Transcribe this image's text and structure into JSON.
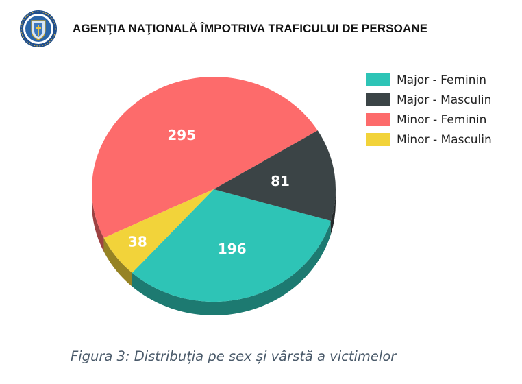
{
  "header": {
    "logo_icon": "mai-coat-of-arms-emblem",
    "organization": "AGENŢIA NAŢIONALĂ ÎMPOTRIVA TRAFICULUI DE PERSOANE"
  },
  "chart_data": {
    "type": "pie",
    "title": "",
    "categories": [
      "Major - Feminin",
      "Major - Masculin",
      "Minor - Feminin",
      "Minor - Masculin"
    ],
    "values": [
      196,
      81,
      295,
      38
    ],
    "colors": [
      "#2ec4b6",
      "#3b4446",
      "#fd6b6b",
      "#f2d33a"
    ],
    "data_labels": [
      "196",
      "81",
      "295",
      "38"
    ],
    "legend_placement": "right",
    "style": "3d-tilted"
  },
  "caption": "Figura 3: Distribuția pe sex și vârstă a victimelor"
}
